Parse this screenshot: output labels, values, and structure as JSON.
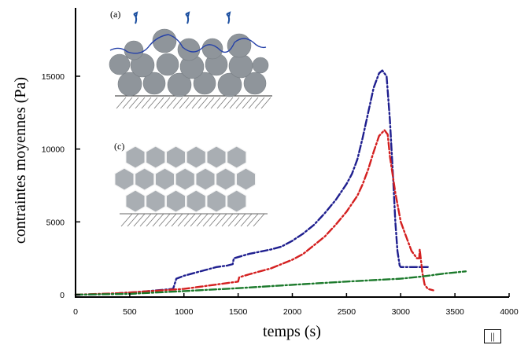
{
  "chart_data": {
    "type": "line",
    "xlabel": "temps (s)",
    "ylabel": "contraintes moyennes (Pa)",
    "xlim": [
      0,
      4000
    ],
    "ylim": [
      0,
      20000
    ],
    "xticks": [
      0,
      500,
      1000,
      1500,
      2000,
      2500,
      3000,
      3500,
      4000
    ],
    "yticks": [
      0,
      5000,
      10000,
      15000
    ],
    "grid": false,
    "legend": null,
    "series": [
      {
        "color": "#1f1f8f",
        "style": "dashed",
        "x": [
          0,
          300,
          600,
          900,
          930,
          1000,
          1100,
          1200,
          1300,
          1400,
          1450,
          1460,
          1600,
          1800,
          1900,
          2000,
          2100,
          2200,
          2300,
          2400,
          2500,
          2550,
          2600,
          2650,
          2700,
          2750,
          2800,
          2830,
          2870,
          2900,
          2930,
          2950,
          2970,
          2990,
          3000,
          3020,
          3250
        ],
        "y": [
          0,
          50,
          200,
          400,
          1100,
          1300,
          1500,
          1700,
          1900,
          2000,
          2100,
          2500,
          2800,
          3100,
          3300,
          3700,
          4200,
          4800,
          5600,
          6500,
          7600,
          8300,
          9300,
          10800,
          12500,
          14200,
          15200,
          15400,
          15000,
          12000,
          8000,
          5000,
          3000,
          2000,
          1900,
          1900,
          1900
        ]
      },
      {
        "color": "#d42020",
        "style": "dashed",
        "x": [
          0,
          400,
          800,
          1000,
          1200,
          1400,
          1500,
          1510,
          1600,
          1800,
          2000,
          2100,
          2200,
          2300,
          2400,
          2500,
          2600,
          2650,
          2700,
          2750,
          2800,
          2850,
          2880,
          2900,
          2950,
          3000,
          3050,
          3100,
          3150,
          3170,
          3175,
          3200,
          3220,
          3250,
          3300
        ],
        "y": [
          0,
          100,
          300,
          400,
          600,
          800,
          900,
          1200,
          1400,
          1800,
          2400,
          2800,
          3400,
          4000,
          4800,
          5700,
          6800,
          7600,
          8600,
          9800,
          10900,
          11300,
          11000,
          9500,
          7000,
          5000,
          4000,
          3000,
          2500,
          2500,
          3100,
          1500,
          700,
          400,
          300
        ]
      },
      {
        "color": "#1c7a2c",
        "style": "dashed",
        "x": [
          0,
          500,
          1000,
          1500,
          2000,
          2500,
          3000,
          3200,
          3400,
          3600
        ],
        "y": [
          0,
          60,
          250,
          450,
          680,
          900,
          1100,
          1250,
          1450,
          1600
        ]
      }
    ],
    "annotations": [
      "(a)",
      "(c)"
    ]
  },
  "badge": "||"
}
